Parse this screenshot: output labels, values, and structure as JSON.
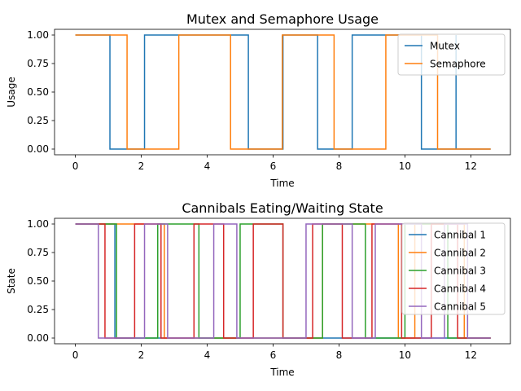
{
  "chart_data": [
    {
      "type": "line",
      "title": "Mutex and Semaphore Usage",
      "xlabel": "Time",
      "ylabel": "Usage",
      "xlim": [
        -0.63,
        13.2
      ],
      "ylim": [
        -0.05,
        1.05
      ],
      "xticks": [
        0,
        2,
        4,
        6,
        8,
        10,
        12
      ],
      "yticks": [
        0.0,
        0.25,
        0.5,
        0.75,
        1.0
      ],
      "xtick_labels": [
        "0",
        "2",
        "4",
        "6",
        "8",
        "10",
        "12"
      ],
      "ytick_labels": [
        "0.00",
        "0.25",
        "0.50",
        "0.75",
        "1.00"
      ],
      "legend_position": "top-right",
      "grid": false,
      "series": [
        {
          "name": "Mutex",
          "color": "#1f77b4",
          "step": true,
          "points": [
            [
              0,
              1
            ],
            [
              1.05,
              1
            ],
            [
              1.05,
              0
            ],
            [
              2.1,
              0
            ],
            [
              2.1,
              1
            ],
            [
              4.2,
              1
            ],
            [
              4.2,
              1
            ],
            [
              5.25,
              1
            ],
            [
              5.25,
              0
            ],
            [
              6.3,
              0
            ],
            [
              6.3,
              1
            ],
            [
              7.35,
              1
            ],
            [
              7.35,
              0
            ],
            [
              8.4,
              0
            ],
            [
              8.4,
              1
            ],
            [
              10.5,
              1
            ],
            [
              10.5,
              0
            ],
            [
              11.55,
              0
            ],
            [
              11.55,
              1
            ],
            [
              11.55,
              0
            ],
            [
              12.6,
              0
            ]
          ]
        },
        {
          "name": "Semaphore",
          "color": "#ff7f0e",
          "step": true,
          "points": [
            [
              0,
              1
            ],
            [
              1.57,
              1
            ],
            [
              1.57,
              0
            ],
            [
              3.14,
              0
            ],
            [
              3.14,
              1
            ],
            [
              4.71,
              1
            ],
            [
              4.71,
              0
            ],
            [
              6.28,
              0
            ],
            [
              6.28,
              1
            ],
            [
              7.85,
              1
            ],
            [
              7.85,
              0
            ],
            [
              9.42,
              0
            ],
            [
              9.42,
              1
            ],
            [
              10.99,
              1
            ],
            [
              10.99,
              0
            ],
            [
              12.6,
              0
            ]
          ]
        }
      ]
    },
    {
      "type": "line",
      "title": "Cannibals Eating/Waiting State",
      "xlabel": "Time",
      "ylabel": "State",
      "xlim": [
        -0.63,
        13.2
      ],
      "ylim": [
        -0.05,
        1.05
      ],
      "xticks": [
        0,
        2,
        4,
        6,
        8,
        10,
        12
      ],
      "yticks": [
        0.0,
        0.25,
        0.5,
        0.75,
        1.0
      ],
      "xtick_labels": [
        "0",
        "2",
        "4",
        "6",
        "8",
        "10",
        "12"
      ],
      "ytick_labels": [
        "0.00",
        "0.25",
        "0.50",
        "0.75",
        "1.00"
      ],
      "legend_position": "top-right",
      "grid": false,
      "series": [
        {
          "name": "Cannibal 1",
          "color": "#1f77b4",
          "points": [
            [
              0,
              1
            ],
            [
              1.2,
              1
            ],
            [
              1.2,
              0
            ],
            [
              6.3,
              0
            ],
            [
              6.3,
              0
            ],
            [
              12.6,
              0
            ]
          ]
        },
        {
          "name": "Cannibal 2",
          "color": "#ff7f0e",
          "points": [
            [
              0,
              1
            ],
            [
              2.7,
              1
            ],
            [
              2.7,
              0
            ],
            [
              6.3,
              0
            ],
            [
              6.3,
              0
            ],
            [
              7.5,
              0
            ],
            [
              7.5,
              1
            ],
            [
              9.8,
              1
            ],
            [
              9.8,
              0
            ],
            [
              10.3,
              0
            ],
            [
              10.3,
              1
            ],
            [
              11.8,
              1
            ],
            [
              11.8,
              0
            ],
            [
              12.6,
              0
            ]
          ]
        },
        {
          "name": "Cannibal 3",
          "color": "#2ca02c",
          "points": [
            [
              0,
              1
            ],
            [
              1.25,
              1
            ],
            [
              1.25,
              0
            ],
            [
              2.5,
              0
            ],
            [
              2.5,
              1
            ],
            [
              3.75,
              1
            ],
            [
              3.75,
              0
            ],
            [
              5.0,
              0
            ],
            [
              5.0,
              1
            ],
            [
              6.3,
              1
            ],
            [
              6.3,
              0
            ],
            [
              7.5,
              0
            ],
            [
              7.5,
              1
            ],
            [
              8.8,
              1
            ],
            [
              8.8,
              0
            ],
            [
              10.0,
              0
            ],
            [
              10.0,
              1
            ],
            [
              11.3,
              1
            ],
            [
              11.3,
              0
            ],
            [
              12.6,
              0
            ]
          ]
        },
        {
          "name": "Cannibal 4",
          "color": "#d62728",
          "points": [
            [
              0,
              1
            ],
            [
              0.9,
              1
            ],
            [
              0.9,
              0
            ],
            [
              1.8,
              0
            ],
            [
              1.8,
              1
            ],
            [
              2.6,
              1
            ],
            [
              2.6,
              0
            ],
            [
              3.6,
              0
            ],
            [
              3.6,
              1
            ],
            [
              4.5,
              1
            ],
            [
              4.5,
              0
            ],
            [
              5.4,
              0
            ],
            [
              5.4,
              1
            ],
            [
              6.3,
              1
            ],
            [
              6.3,
              0
            ],
            [
              7.2,
              0
            ],
            [
              7.2,
              1
            ],
            [
              8.1,
              1
            ],
            [
              8.1,
              0
            ],
            [
              9.0,
              0
            ],
            [
              9.0,
              1
            ],
            [
              9.9,
              1
            ],
            [
              9.9,
              0
            ],
            [
              10.8,
              0
            ],
            [
              10.8,
              1
            ],
            [
              11.6,
              1
            ],
            [
              11.6,
              0
            ],
            [
              12.6,
              0
            ]
          ]
        },
        {
          "name": "Cannibal 5",
          "color": "#9467bd",
          "points": [
            [
              0,
              1
            ],
            [
              0.7,
              1
            ],
            [
              0.7,
              0
            ],
            [
              2.1,
              0
            ],
            [
              2.1,
              1
            ],
            [
              2.8,
              1
            ],
            [
              2.8,
              0
            ],
            [
              4.2,
              0
            ],
            [
              4.2,
              1
            ],
            [
              4.9,
              1
            ],
            [
              4.9,
              0
            ],
            [
              5.6,
              0
            ],
            [
              5.6,
              0
            ],
            [
              6.3,
              0
            ],
            [
              6.3,
              0
            ],
            [
              7.0,
              0
            ],
            [
              7.0,
              1
            ],
            [
              8.4,
              1
            ],
            [
              8.4,
              0
            ],
            [
              9.1,
              0
            ],
            [
              9.1,
              1
            ],
            [
              9.8,
              1
            ],
            [
              9.8,
              1
            ],
            [
              10.5,
              1
            ],
            [
              10.5,
              0
            ],
            [
              11.2,
              0
            ],
            [
              11.2,
              1
            ],
            [
              11.9,
              1
            ],
            [
              11.9,
              0
            ],
            [
              12.6,
              0
            ]
          ]
        }
      ]
    }
  ]
}
